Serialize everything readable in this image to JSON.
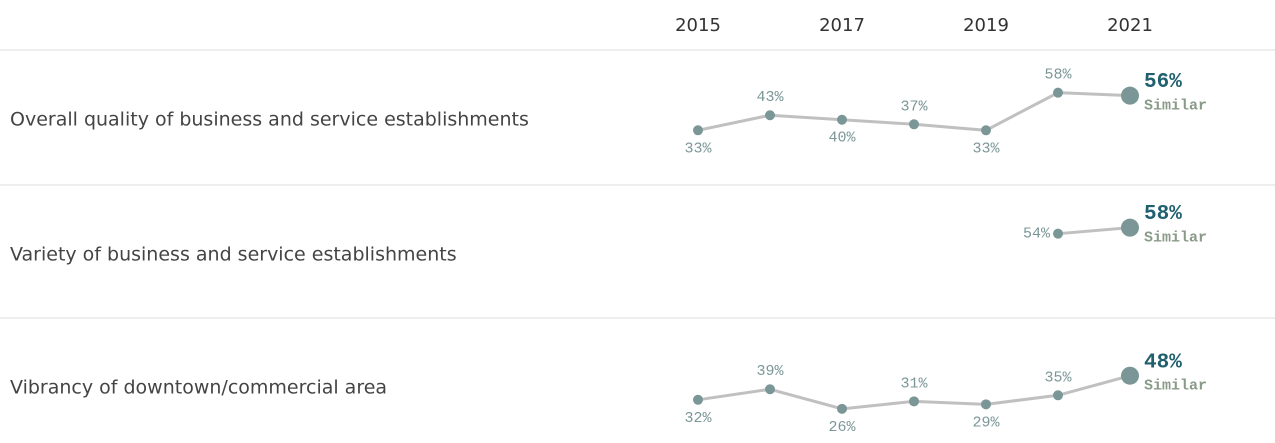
{
  "x_axis": {
    "xlim": [
      2015,
      2021
    ],
    "xticks": [
      2015,
      2017,
      2019,
      2021
    ]
  },
  "chart_data": [
    {
      "type": "line",
      "label": "Overall quality of business and service establishments",
      "x": [
        2015,
        2016,
        2017,
        2018,
        2019,
        2020,
        2021
      ],
      "values": [
        33,
        43,
        40,
        37,
        33,
        58,
        56
      ],
      "value_labels": [
        "33%",
        "43%",
        "40%",
        "37%",
        "33%",
        "58%",
        "56%"
      ],
      "comparison": "Similar",
      "ylim": [
        0,
        85
      ],
      "color": "#7b9696"
    },
    {
      "type": "line",
      "label": "Variety of business and service establishments",
      "x": [
        2020,
        2021
      ],
      "values": [
        54,
        58
      ],
      "value_labels": [
        "54%",
        "58%"
      ],
      "comparison": "Similar",
      "ylim": [
        0,
        85
      ],
      "color": "#7b9696"
    },
    {
      "type": "line",
      "label": "Vibrancy of downtown/commercial area",
      "x": [
        2015,
        2016,
        2017,
        2018,
        2019,
        2020,
        2021
      ],
      "values": [
        32,
        39,
        26,
        31,
        29,
        35,
        48
      ],
      "value_labels": [
        "32%",
        "39%",
        "26%",
        "31%",
        "29%",
        "35%",
        "48%"
      ],
      "comparison": "Similar",
      "ylim": [
        0,
        85
      ],
      "color": "#7b9696"
    }
  ]
}
